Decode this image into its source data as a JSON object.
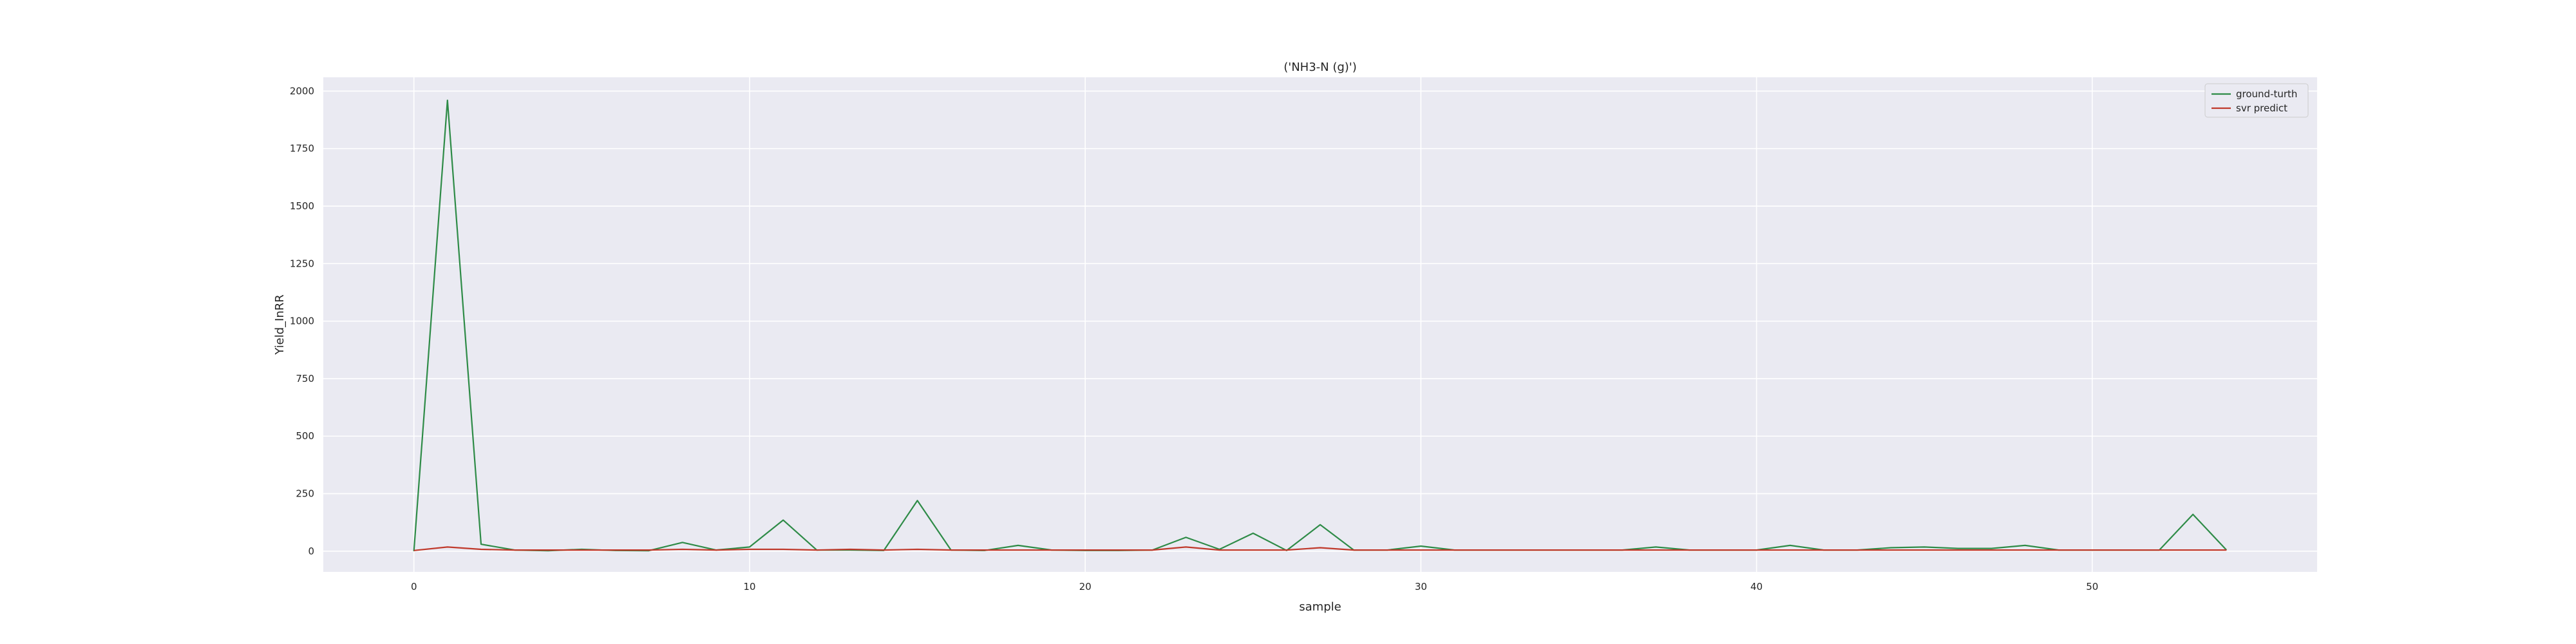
{
  "chart_data": {
    "type": "line",
    "title": "('NH3-N (g)')",
    "xlabel": "sample",
    "ylabel": "Yield_InRR",
    "xlim": [
      -2.7,
      56.7
    ],
    "ylim": [
      -90,
      2060
    ],
    "xticks": [
      0,
      10,
      20,
      30,
      40,
      50
    ],
    "yticks": [
      0,
      250,
      500,
      750,
      1000,
      1250,
      1500,
      1750,
      2000
    ],
    "grid": true,
    "legend_position": "upper right",
    "series": [
      {
        "name": "ground-turth",
        "color": "#2e8b47",
        "x": [
          0,
          1,
          2,
          3,
          4,
          5,
          6,
          7,
          8,
          9,
          10,
          11,
          12,
          13,
          14,
          15,
          16,
          17,
          18,
          19,
          20,
          21,
          22,
          23,
          24,
          25,
          26,
          27,
          28,
          29,
          30,
          31,
          32,
          33,
          34,
          35,
          36,
          37,
          38,
          39,
          40,
          41,
          42,
          43,
          44,
          45,
          46,
          47,
          48,
          49,
          50,
          51,
          52,
          53,
          54
        ],
        "values": [
          0,
          1960,
          30,
          5,
          2,
          8,
          3,
          2,
          38,
          5,
          18,
          135,
          5,
          5,
          3,
          220,
          5,
          3,
          25,
          5,
          3,
          3,
          5,
          60,
          8,
          78,
          3,
          115,
          5,
          5,
          22,
          5,
          5,
          5,
          5,
          5,
          5,
          18,
          5,
          5,
          5,
          25,
          5,
          5,
          15,
          18,
          12,
          12,
          25,
          5,
          5,
          5,
          5,
          160,
          5
        ]
      },
      {
        "name": "svr predict",
        "color": "#c0392b",
        "x": [
          0,
          1,
          2,
          3,
          4,
          5,
          6,
          7,
          8,
          9,
          10,
          11,
          12,
          13,
          14,
          15,
          16,
          17,
          18,
          19,
          20,
          21,
          22,
          23,
          24,
          25,
          26,
          27,
          28,
          29,
          30,
          31,
          32,
          33,
          34,
          35,
          36,
          37,
          38,
          39,
          40,
          41,
          42,
          43,
          44,
          45,
          46,
          47,
          48,
          49,
          50,
          51,
          52,
          53,
          54
        ],
        "values": [
          3,
          18,
          8,
          5,
          5,
          5,
          5,
          5,
          8,
          5,
          8,
          8,
          5,
          8,
          5,
          8,
          5,
          5,
          5,
          5,
          5,
          5,
          5,
          18,
          5,
          5,
          5,
          15,
          5,
          5,
          5,
          5,
          5,
          5,
          5,
          5,
          5,
          5,
          5,
          5,
          5,
          5,
          5,
          5,
          5,
          5,
          5,
          5,
          5,
          5,
          5,
          5,
          5,
          5,
          5
        ]
      }
    ]
  }
}
